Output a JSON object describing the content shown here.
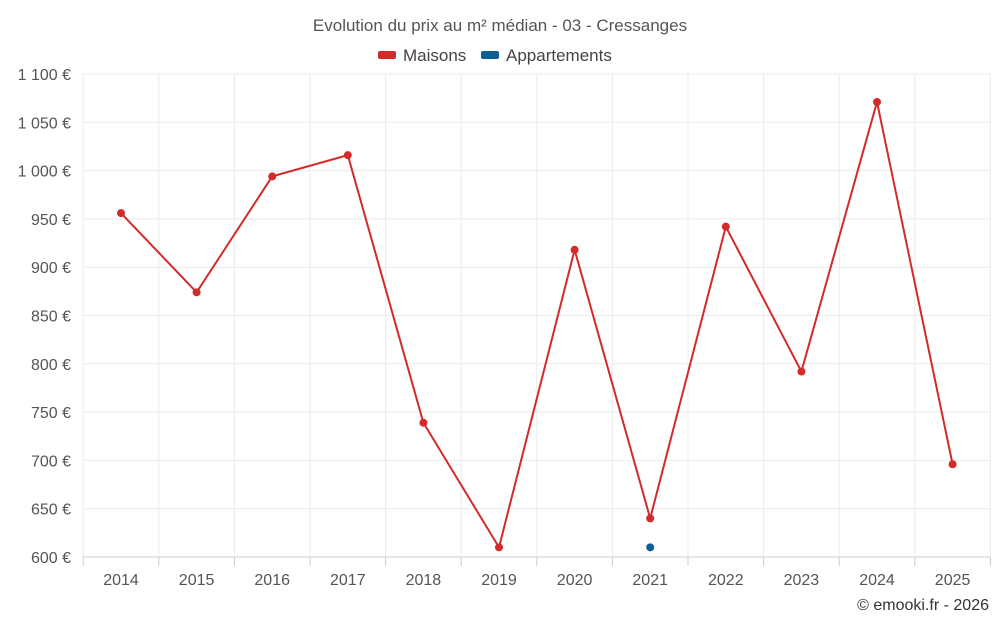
{
  "chart_data": {
    "type": "line",
    "title": "Evolution du prix au m² médian - 03 - Cressanges",
    "categories": [
      "2014",
      "2015",
      "2016",
      "2017",
      "2018",
      "2019",
      "2020",
      "2021",
      "2022",
      "2023",
      "2024",
      "2025"
    ],
    "series": [
      {
        "name": "Maisons",
        "color": "#d32a2a",
        "values": [
          956,
          874,
          994,
          1016,
          739,
          610,
          918,
          640,
          942,
          792,
          1071,
          696
        ]
      },
      {
        "name": "Appartements",
        "color": "#0b5e96",
        "values": [
          null,
          null,
          null,
          null,
          null,
          null,
          null,
          610,
          null,
          null,
          null,
          null
        ]
      }
    ],
    "ylim": [
      600,
      1100
    ],
    "yticks": [
      600,
      650,
      700,
      750,
      800,
      850,
      900,
      950,
      1000,
      1050,
      1100
    ],
    "ytick_labels": [
      "600 €",
      "650 €",
      "700 €",
      "750 €",
      "800 €",
      "850 €",
      "900 €",
      "950 €",
      "1 000 €",
      "1 050 €",
      "1 100 €"
    ],
    "grid": true,
    "legend": "top-center",
    "credit": "© emooki.fr - 2026"
  }
}
